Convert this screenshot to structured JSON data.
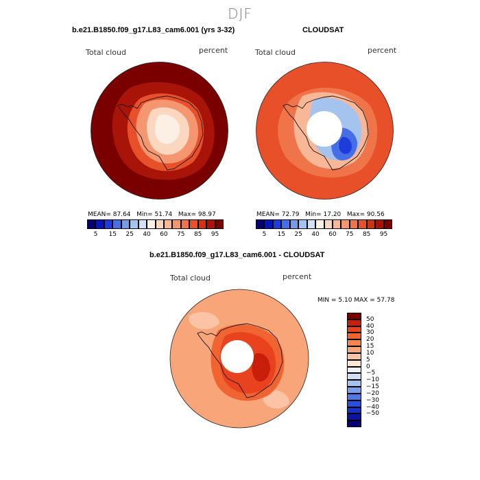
{
  "main_title": "DJF",
  "panels": [
    {
      "title": "b.e21.B1850.f09_g17.L83_cam6.001 (yrs 3-32)",
      "variable": "Total cloud",
      "units": "percent",
      "stats": {
        "mean_label": "MEAN=",
        "mean": "87.64",
        "min_label": "Min=",
        "min": "51.74",
        "max_label": "Max=",
        "max": "98.97"
      }
    },
    {
      "title": "CLOUDSAT",
      "variable": "Total cloud",
      "units": "percent",
      "stats": {
        "mean_label": "MEAN=",
        "mean": "72.79",
        "min_label": "Min=",
        "min": "17.20",
        "max_label": "Max=",
        "max": "90.56"
      }
    },
    {
      "title": "b.e21.B1850.f09_g17.L83_cam6.001 - CLOUDSAT",
      "variable": "Total cloud",
      "units": "percent",
      "stats_line": "MIN =    5.10 MAX =  57.78"
    }
  ],
  "abs_colorbar": {
    "colors": [
      "#08006e",
      "#0a14b4",
      "#1e3cdc",
      "#466ee6",
      "#789be6",
      "#a5c3ef",
      "#d2e1f5",
      "#fcefe4",
      "#fcd7c0",
      "#f8b898",
      "#f49670",
      "#f0744a",
      "#e8502a",
      "#d03214",
      "#a81408",
      "#7a0000"
    ],
    "tick_labels": [
      "5",
      "15",
      "25",
      "40",
      "60",
      "75",
      "85",
      "95"
    ]
  },
  "diff_colorbar": {
    "colors": [
      "#7a0000",
      "#c81e0a",
      "#e8421e",
      "#f06432",
      "#f4874e",
      "#f8a57a",
      "#fcc4a6",
      "#fde6d4",
      "#eef3fb",
      "#cde0f6",
      "#a5c3ef",
      "#7b9eea",
      "#5078e4",
      "#2850dc",
      "#1432c8",
      "#0a14a0",
      "#06006e"
    ],
    "tick_labels": [
      "50",
      "40",
      "30",
      "20",
      "15",
      "10",
      "5",
      "0",
      "−5",
      "−10",
      "−15",
      "−20",
      "−30",
      "−40",
      "−50"
    ]
  }
}
